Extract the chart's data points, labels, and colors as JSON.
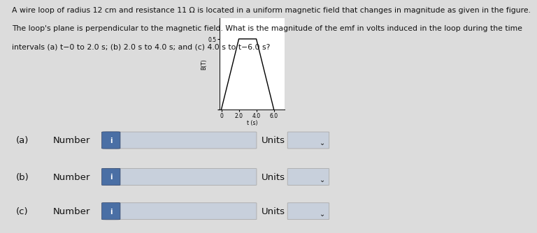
{
  "problem_text": "A wire loop of radius 12 cm and resistance 11 Ω is located in a uniform magnetic field that changes in magnitude as given in the figure.\nThe loop's plane is perpendicular to the magnetic field. What is the magnitude of the emf in volts induced in the loop during the time\nintervals (a) t−0 to 2.0 s; (b) 2.0 s to 4.0 s; and (c) 4.0 s to t−6.0 s?",
  "graph": {
    "t_values": [
      0,
      2.0,
      4.0,
      6.0
    ],
    "B_values": [
      0,
      0.5,
      0.5,
      0
    ],
    "xlabel": "t (s)",
    "ylabel": "B(T)",
    "xtick_labels": [
      "0",
      "2.0",
      "4.0",
      "6.0"
    ],
    "ytick_val": "0.5",
    "ylim": [
      0,
      0.65
    ],
    "xlim": [
      -0.2,
      7.2
    ]
  },
  "rows": [
    "(a)",
    "(b)",
    "(c)"
  ],
  "units_label": "Units",
  "bg_color": "#dcdcdc",
  "input_bg": "#c8d0dc",
  "input_border": "#aaaaaa",
  "i_btn_color": "#4a6fa5",
  "text_color": "#111111",
  "font_size_text": 7.8,
  "font_size_row": 9.5
}
